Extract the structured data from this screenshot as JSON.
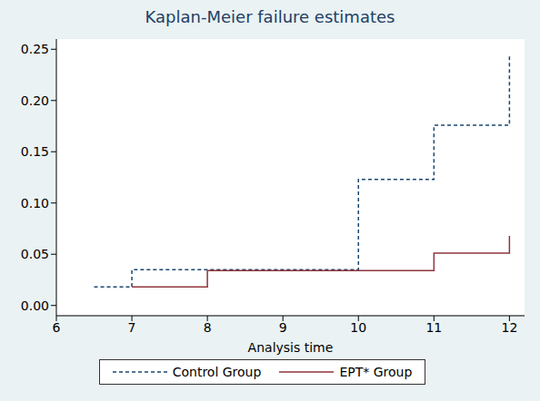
{
  "chart_data": {
    "type": "line",
    "title": "Kaplan-Meier failure estimates",
    "x_label": "Analysis time",
    "x": [
      6.5,
      7,
      8,
      10,
      11,
      12
    ],
    "series": [
      {
        "name": "Control Group",
        "color": "#1a476f",
        "line_style": "dashed",
        "values": [
          0.018,
          0.035,
          null,
          0.123,
          0.176,
          0.245
        ]
      },
      {
        "name": "EPT* Group",
        "color": "#90353b",
        "line_style": "solid",
        "values": [
          null,
          0.018,
          0.034,
          null,
          0.051,
          0.068
        ]
      }
    ],
    "xlim": [
      6,
      12.2
    ],
    "xticks": [
      6,
      7,
      8,
      9,
      10,
      11,
      12
    ],
    "ylim": [
      -0.01,
      0.26
    ],
    "yticks": [
      {
        "value": 0,
        "label": "0.00"
      },
      {
        "value": 0.05,
        "label": "0.05"
      },
      {
        "value": 0.1,
        "label": "0.10"
      },
      {
        "value": 0.15,
        "label": "0.15"
      },
      {
        "value": 0.2,
        "label": "0.20"
      },
      {
        "value": 0.25,
        "label": "0.25"
      }
    ],
    "grid": true,
    "legend": "bottom"
  }
}
